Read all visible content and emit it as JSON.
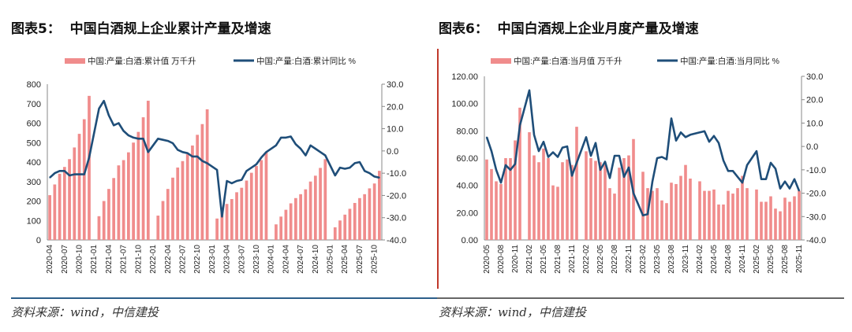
{
  "left": {
    "title": "图表5：  中国白酒规上企业累计产量及增速",
    "source": "资料来源：wind，中信建投",
    "chart_data": {
      "type": "bar+line",
      "start_month": "2020-04",
      "x_tick_labels": [
        "2020-04",
        "2020-07",
        "2020-10",
        "2021-01",
        "2021-04",
        "2021-07",
        "2021-10",
        "2022-01",
        "2022-04",
        "2022-07",
        "2022-10",
        "2023-01",
        "2023-04",
        "2023-07",
        "2023-10",
        "2024-01",
        "2024-04",
        "2024-07",
        "2024-10",
        "2025-01",
        "2025-04",
        "2025-07",
        "2025-10"
      ],
      "y_left": {
        "ticks": [
          "0",
          "100",
          "200",
          "300",
          "400",
          "500",
          "600",
          "700",
          "800"
        ],
        "range": [
          0,
          800
        ]
      },
      "y_right": {
        "ticks": [
          "-40.0",
          "-30.0",
          "-20.0",
          "-10.0",
          "0.0",
          "10.0",
          "20.0",
          "30.0"
        ],
        "range": [
          -40,
          30
        ]
      },
      "legend_position": "top",
      "series": [
        {
          "name": "中国:产量:白酒:累计值 万千升",
          "type": "bar",
          "axis": "left",
          "color": "#f08c8c",
          "values": [
            230,
            285,
            340,
            375,
            415,
            475,
            545,
            620,
            740,
            null,
            122,
            200,
            262,
            318,
            383,
            410,
            450,
            500,
            555,
            630,
            715,
            null,
            125,
            200,
            262,
            320,
            372,
            405,
            440,
            485,
            540,
            595,
            671,
            null,
            110,
            148,
            185,
            210,
            245,
            268,
            305,
            345,
            380,
            410,
            450,
            null,
            80,
            120,
            155,
            188,
            215,
            235,
            260,
            300,
            330,
            370,
            415,
            null,
            65,
            100,
            130,
            160,
            190,
            215,
            235,
            265,
            290,
            355
          ]
        },
        {
          "name": "中国:产量:白酒:累计同比 %",
          "type": "line",
          "axis": "right",
          "color": "#1f4e79",
          "values": [
            -12,
            -10,
            -9,
            -9,
            -11,
            -10.5,
            -10.5,
            -10.5,
            -3,
            null,
            19,
            22.5,
            16,
            11.5,
            12.5,
            9,
            7,
            6,
            5.5,
            5.5,
            -0.5,
            null,
            5.5,
            5,
            4.5,
            3.5,
            0.5,
            -0.5,
            -1,
            -2.5,
            -2.5,
            -4.5,
            -5.5,
            null,
            -8.5,
            -29.5,
            -13.5,
            -14.5,
            -13.5,
            -13,
            -9,
            -7.5,
            -6,
            -3,
            -0.5,
            null,
            2.5,
            6,
            6,
            6.5,
            3,
            1,
            -2,
            2.5,
            1,
            -0.5,
            -2,
            null,
            -11,
            -7.5,
            -8,
            -7.5,
            -5.5,
            -5,
            -9,
            -10,
            -11.5,
            -12
          ]
        }
      ]
    }
  },
  "right": {
    "title": "图表6：  中国白酒规上企业月度产量及增速",
    "source": "资料来源：wind，中信建投",
    "chart_data": {
      "type": "bar+line",
      "start_month": "2020-05",
      "x_tick_labels": [
        "2020-05",
        "2020-08",
        "2020-11",
        "2021-02",
        "2021-05",
        "2021-08",
        "2021-11",
        "2022-02",
        "2022-05",
        "2022-08",
        "2022-11",
        "2023-02",
        "2023-05",
        "2023-08",
        "2023-11",
        "2024-02",
        "2024-05",
        "2024-08",
        "2024-11",
        "2025-02",
        "2025-05",
        "2025-08",
        "2025-11"
      ],
      "y_left": {
        "ticks": [
          "0.00",
          "20.00",
          "40.00",
          "60.00",
          "80.00",
          "100.00",
          "120.00"
        ],
        "range": [
          0,
          120
        ]
      },
      "y_right": {
        "ticks": [
          "-40.0",
          "-30.0",
          "-20.0",
          "-10.0",
          "0.0",
          "10.0",
          "20.0",
          "30.0"
        ],
        "range": [
          -40,
          30
        ]
      },
      "legend_position": "top",
      "series": [
        {
          "name": "中国:产量:白酒:当月值 万千升",
          "type": "bar",
          "axis": "left",
          "color": "#f08c8c",
          "values": [
            59,
            52,
            43,
            41,
            60,
            60,
            73,
            97,
            null,
            79,
            62,
            57,
            67,
            60,
            40,
            39,
            57,
            59,
            55,
            83,
            null,
            65,
            60,
            58,
            57,
            55,
            38,
            34,
            53,
            60,
            62,
            74,
            null,
            50,
            38,
            36,
            38,
            29,
            27,
            42,
            41,
            47,
            55,
            45,
            null,
            43,
            36,
            36,
            37,
            26,
            26,
            36,
            34,
            38,
            47,
            38,
            null,
            37,
            28,
            28,
            32,
            23,
            21,
            31,
            28,
            32,
            36
          ]
        },
        {
          "name": "中国:产量:白酒:当月同比 %",
          "type": "line",
          "axis": "right",
          "color": "#1f4e79",
          "values": [
            4,
            -2,
            -10,
            -15.5,
            -8,
            -10,
            -7.5,
            9,
            null,
            24,
            5,
            -2,
            2,
            -4.5,
            -2.5,
            -4.5,
            -0.5,
            0,
            -12.5,
            -7,
            null,
            4,
            -4,
            1.5,
            -10,
            -6.5,
            -13.5,
            -4,
            -4,
            -13,
            -9,
            -20,
            null,
            -29.5,
            -29,
            -15,
            -5,
            -4.5,
            -5.5,
            12,
            2.5,
            6,
            4,
            5,
            null,
            6,
            6.5,
            2,
            4.5,
            1.5,
            -6,
            -10.5,
            -10.5,
            -13,
            -15.5,
            -8,
            null,
            -2,
            -14,
            -14,
            -7,
            -9.5,
            -18,
            -15,
            -18,
            -14,
            -19
          ]
        }
      ]
    }
  }
}
